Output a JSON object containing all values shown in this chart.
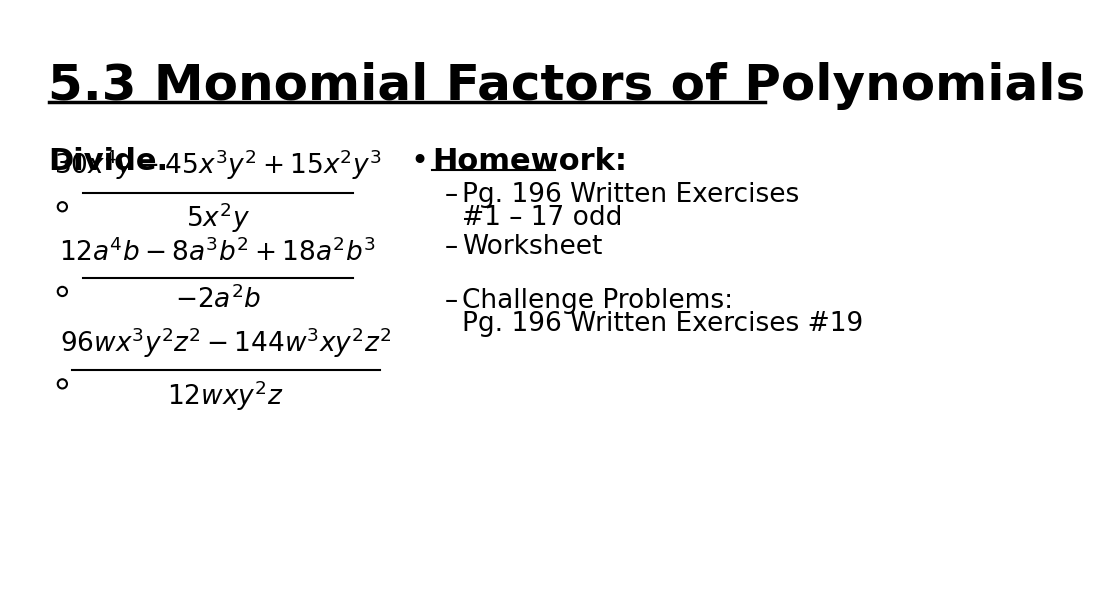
{
  "title": "5.3 Monomial Factors of Polynomials",
  "background_color": "#ffffff",
  "text_color": "#000000",
  "divide_label": "Divide.",
  "problem1_num": "30x^{4}y-45x^{3}y^{2}+15x^{2}y^{3}",
  "problem1_den": "5x^{2}y",
  "problem2_num": "12a^{4}b-8a^{3}b^{2}+18a^{2}b^{3}",
  "problem2_den": "-2a^{2}b",
  "problem3_num": "96wx^{3}y^{2}z^{2}-144w^{3}xy^{2}z^{2}",
  "problem3_den": "12wxy^{2}z",
  "hw_title": "Homework:",
  "hw_line1": "Pg. 196 Written Exercises",
  "hw_line2": "#1 – 17 odd",
  "hw_line3": "Worksheet",
  "hw_line4": "Challenge Problems:",
  "hw_line5": "Pg. 196 Written Exercises #19"
}
